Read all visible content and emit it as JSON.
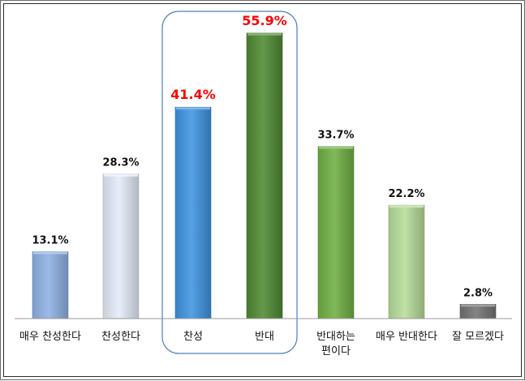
{
  "chart_data": {
    "type": "bar",
    "title": "",
    "xlabel": "",
    "ylabel": "",
    "ylim": [
      0,
      56
    ],
    "grid": false,
    "legend": "none",
    "categories": [
      [
        "매우 찬성한다"
      ],
      [
        "찬성한다"
      ],
      [
        "찬성"
      ],
      [
        "반대"
      ],
      [
        "반대하는",
        "편이다"
      ],
      [
        "매우 반대한다"
      ],
      [
        "잘 모르겠다"
      ]
    ],
    "values": [
      13.1,
      28.3,
      41.4,
      55.9,
      33.7,
      22.2,
      2.8
    ],
    "value_labels": [
      "13.1%",
      "28.3%",
      "41.4%",
      "55.9%",
      "33.7%",
      "22.2%",
      "2.8%"
    ],
    "bar_colors": [
      "#8fb1e3",
      "#e4ecf9",
      "#3f93e0",
      "#4f8a33",
      "#6fb043",
      "#b7dd9a",
      "#737373"
    ],
    "highlight": {
      "categories": [
        "찬성",
        "반대"
      ],
      "label_color": "#ff0000",
      "box_color": "#4a7ebb"
    },
    "label_color": "#111111"
  }
}
